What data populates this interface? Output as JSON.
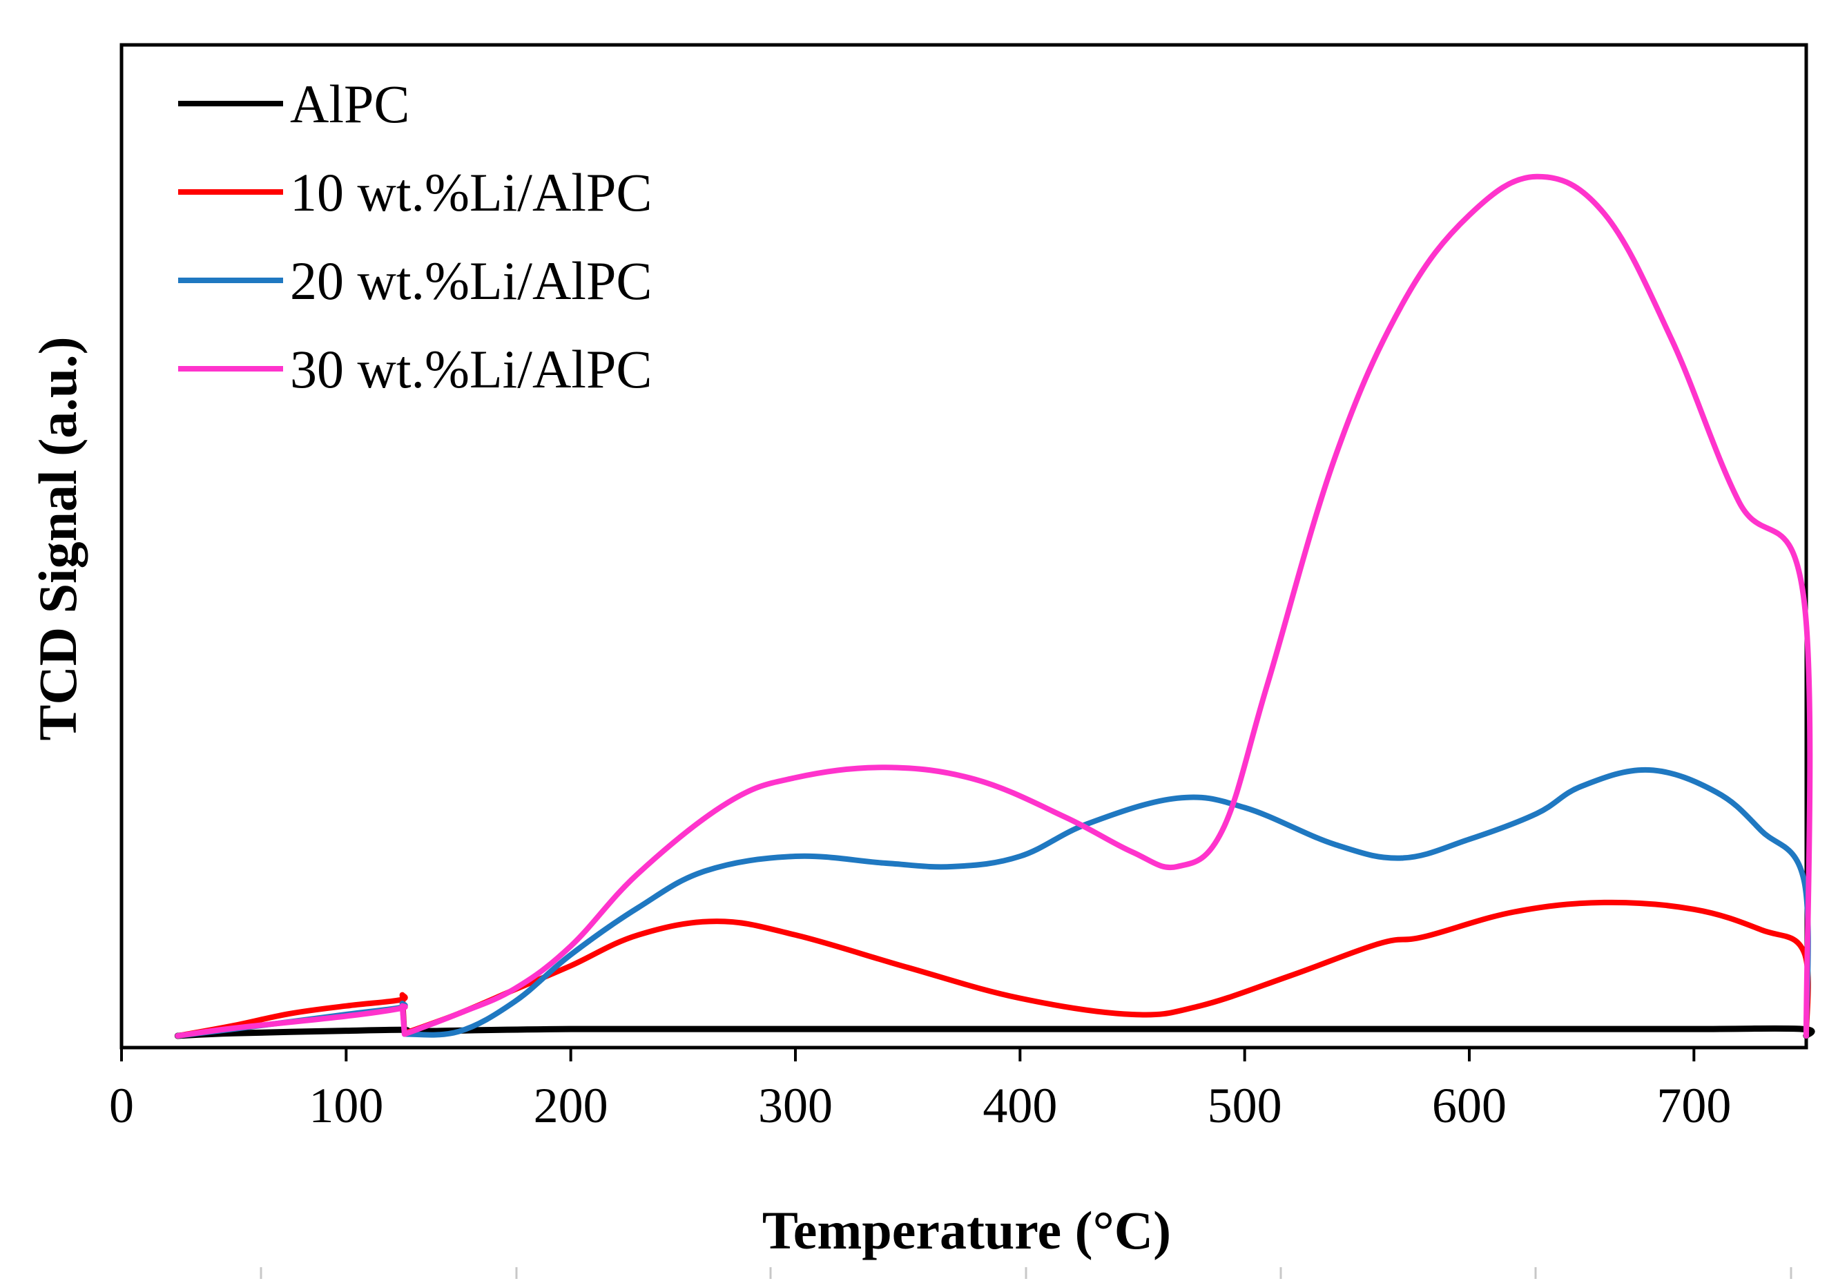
{
  "chart_data": {
    "type": "line",
    "title": "",
    "xlabel": "Temperature (°C)",
    "ylabel": "TCD Signal (a.u.)",
    "xlim": [
      0,
      750
    ],
    "ylim": [
      0,
      100
    ],
    "xticks": [
      0,
      100,
      200,
      300,
      400,
      500,
      600,
      700
    ],
    "xtick_labels": [
      "0",
      "100",
      "200",
      "300",
      "400",
      "500",
      "600",
      "700"
    ],
    "legend_position": "top-left",
    "series": [
      {
        "name": "AlPC",
        "color": "#000000",
        "x": [
          25,
          50,
          100,
          125,
          126,
          200,
          300,
          400,
          500,
          600,
          700,
          748,
          750
        ],
        "y": [
          0,
          0.3,
          0.6,
          0.7,
          0.5,
          0.8,
          0.8,
          0.8,
          0.8,
          0.8,
          0.8,
          0.8,
          0
        ]
      },
      {
        "name": "10 wt.%Li/AlPC",
        "color": "#ff0000",
        "x": [
          25,
          50,
          75,
          100,
          124,
          125,
          126,
          150,
          175,
          200,
          230,
          265,
          300,
          350,
          400,
          450,
          480,
          520,
          560,
          580,
          620,
          660,
          700,
          730,
          749,
          750
        ],
        "y": [
          0,
          1.2,
          2.6,
          3.5,
          4.2,
          4.8,
          0.3,
          2.6,
          5.4,
          8.2,
          11.8,
          13.4,
          11.8,
          8,
          4.4,
          2.5,
          3.5,
          7,
          10.8,
          11.6,
          14.5,
          15.6,
          14.8,
          12.4,
          9.8,
          0
        ]
      },
      {
        "name": "20 wt.%Li/AlPC",
        "color": "#1f78c1",
        "x": [
          25,
          50,
          100,
          124,
          125,
          126,
          150,
          175,
          200,
          230,
          260,
          300,
          340,
          370,
          400,
          430,
          470,
          500,
          540,
          570,
          600,
          630,
          650,
          680,
          710,
          730,
          749,
          750
        ],
        "y": [
          0,
          0.8,
          2.5,
          3.3,
          3.8,
          0.2,
          0.5,
          4,
          9.5,
          15,
          19.3,
          21,
          20.2,
          19.8,
          21,
          24.8,
          27.8,
          26.7,
          22.4,
          20.8,
          23,
          26,
          29.2,
          31.1,
          28.5,
          24,
          18.2,
          0
        ]
      },
      {
        "name": "30 wt.%Li/AlPC",
        "color": "#ff33cc",
        "x": [
          25,
          50,
          100,
          124,
          125,
          126,
          150,
          175,
          200,
          230,
          270,
          300,
          340,
          380,
          420,
          450,
          470,
          490,
          510,
          540,
          570,
          600,
          630,
          660,
          690,
          720,
          749,
          750
        ],
        "y": [
          0,
          0.9,
          2.3,
          3.2,
          3.5,
          0.2,
          2.6,
          5.5,
          10.5,
          19,
          27.3,
          30.2,
          31.4,
          30,
          25.6,
          21.5,
          19.8,
          24,
          41,
          67.5,
          85.5,
          96,
          100.5,
          96.2,
          81.5,
          62.5,
          51,
          0
        ]
      }
    ]
  }
}
